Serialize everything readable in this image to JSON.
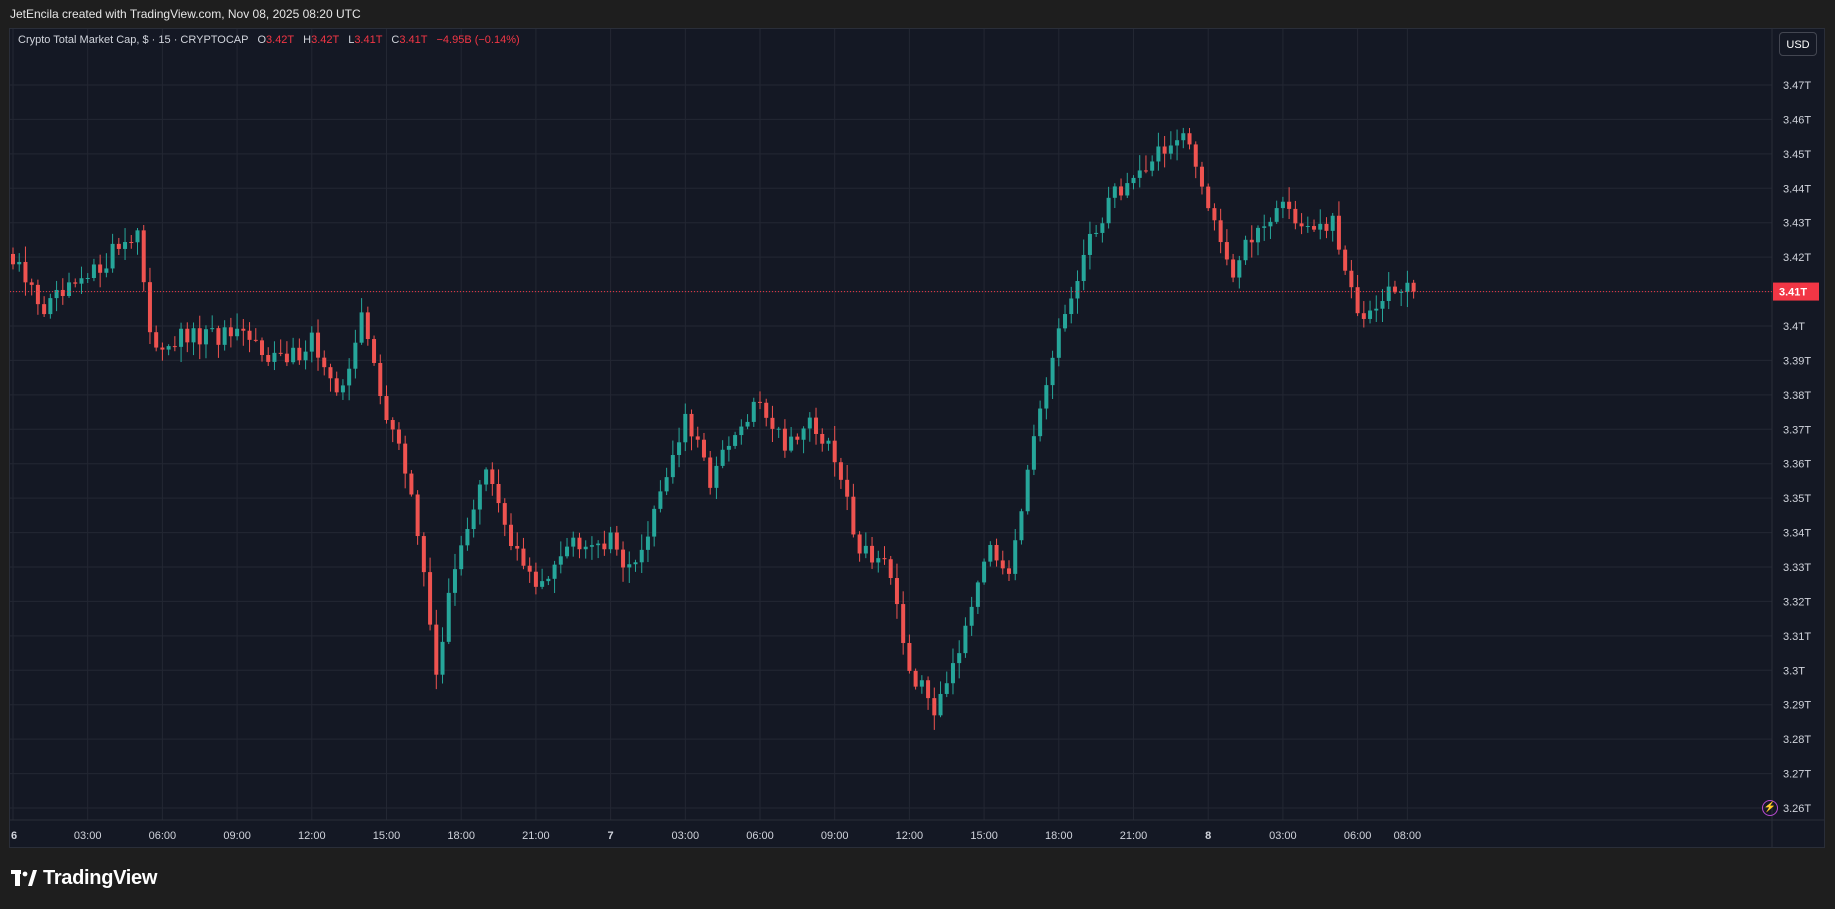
{
  "header": {
    "watermark_text": "JetEncila created with TradingView.com, Nov 08, 2025 08:20 UTC"
  },
  "legend": {
    "symbol": "Crypto Total Market Cap, $ · 15 · CRYPTOCAP",
    "o_label": "O",
    "o_value": "3.42T",
    "h_label": "H",
    "h_value": "3.42T",
    "l_label": "L",
    "l_value": "3.41T",
    "c_label": "C",
    "c_value": "3.41T",
    "change": "−4.95B (−0.14%)"
  },
  "currency_button": "USD",
  "brand": {
    "name": "TradingView"
  },
  "icons": {
    "logo": "tradingview-logo-icon",
    "bolt": "lightning-icon"
  },
  "colors": {
    "up": "#26a69a",
    "down": "#ef5350",
    "background": "#141824",
    "grid": "#232733",
    "price_label_bg": "#f23645"
  },
  "chart_data": {
    "type": "candlestick",
    "xlabel": "",
    "ylabel": "",
    "ylim": [
      3.255,
      3.48
    ],
    "y_ticks": [
      "3.47T",
      "3.46T",
      "3.45T",
      "3.44T",
      "3.43T",
      "3.42T",
      "3.41T",
      "3.4T",
      "3.39T",
      "3.38T",
      "3.37T",
      "3.36T",
      "3.35T",
      "3.34T",
      "3.33T",
      "3.32T",
      "3.31T",
      "3.3T",
      "3.29T",
      "3.28T",
      "3.27T",
      "3.26T"
    ],
    "y_tick_values": [
      3.47,
      3.46,
      3.45,
      3.44,
      3.43,
      3.42,
      3.41,
      3.4,
      3.39,
      3.38,
      3.37,
      3.36,
      3.35,
      3.34,
      3.33,
      3.32,
      3.31,
      3.3,
      3.29,
      3.28,
      3.27,
      3.26
    ],
    "x_ticks": [
      "6",
      "03:00",
      "06:00",
      "09:00",
      "12:00",
      "15:00",
      "18:00",
      "21:00",
      "7",
      "03:00",
      "06:00",
      "09:00",
      "12:00",
      "15:00",
      "18:00",
      "21:00",
      "8",
      "03:00",
      "06:00",
      "08:00"
    ],
    "x_tick_bars": [
      0,
      12,
      24,
      36,
      48,
      60,
      72,
      84,
      96,
      108,
      120,
      132,
      144,
      156,
      168,
      180,
      192,
      204,
      216,
      224
    ],
    "last_price": 3.41,
    "last_price_label": "3.41T",
    "grid": true,
    "key_closes": [
      [
        0,
        3.418
      ],
      [
        5,
        3.405
      ],
      [
        12,
        3.413
      ],
      [
        16,
        3.422
      ],
      [
        20,
        3.428
      ],
      [
        22,
        3.395
      ],
      [
        27,
        3.396
      ],
      [
        34,
        3.397
      ],
      [
        40,
        3.394
      ],
      [
        44,
        3.389
      ],
      [
        48,
        3.397
      ],
      [
        52,
        3.378
      ],
      [
        56,
        3.402
      ],
      [
        60,
        3.375
      ],
      [
        64,
        3.352
      ],
      [
        68,
        3.301
      ],
      [
        72,
        3.338
      ],
      [
        76,
        3.357
      ],
      [
        80,
        3.338
      ],
      [
        84,
        3.323
      ],
      [
        88,
        3.336
      ],
      [
        92,
        3.339
      ],
      [
        96,
        3.337
      ],
      [
        100,
        3.329
      ],
      [
        104,
        3.353
      ],
      [
        108,
        3.372
      ],
      [
        112,
        3.356
      ],
      [
        116,
        3.367
      ],
      [
        120,
        3.378
      ],
      [
        124,
        3.366
      ],
      [
        128,
        3.373
      ],
      [
        132,
        3.361
      ],
      [
        136,
        3.336
      ],
      [
        140,
        3.332
      ],
      [
        144,
        3.3
      ],
      [
        148,
        3.289
      ],
      [
        152,
        3.308
      ],
      [
        156,
        3.334
      ],
      [
        160,
        3.331
      ],
      [
        164,
        3.365
      ],
      [
        168,
        3.398
      ],
      [
        172,
        3.419
      ],
      [
        176,
        3.437
      ],
      [
        180,
        3.443
      ],
      [
        184,
        3.451
      ],
      [
        188,
        3.454
      ],
      [
        192,
        3.437
      ],
      [
        196,
        3.415
      ],
      [
        200,
        3.429
      ],
      [
        204,
        3.436
      ],
      [
        208,
        3.427
      ],
      [
        212,
        3.429
      ],
      [
        216,
        3.403
      ],
      [
        220,
        3.41
      ],
      [
        225,
        3.41
      ]
    ]
  }
}
